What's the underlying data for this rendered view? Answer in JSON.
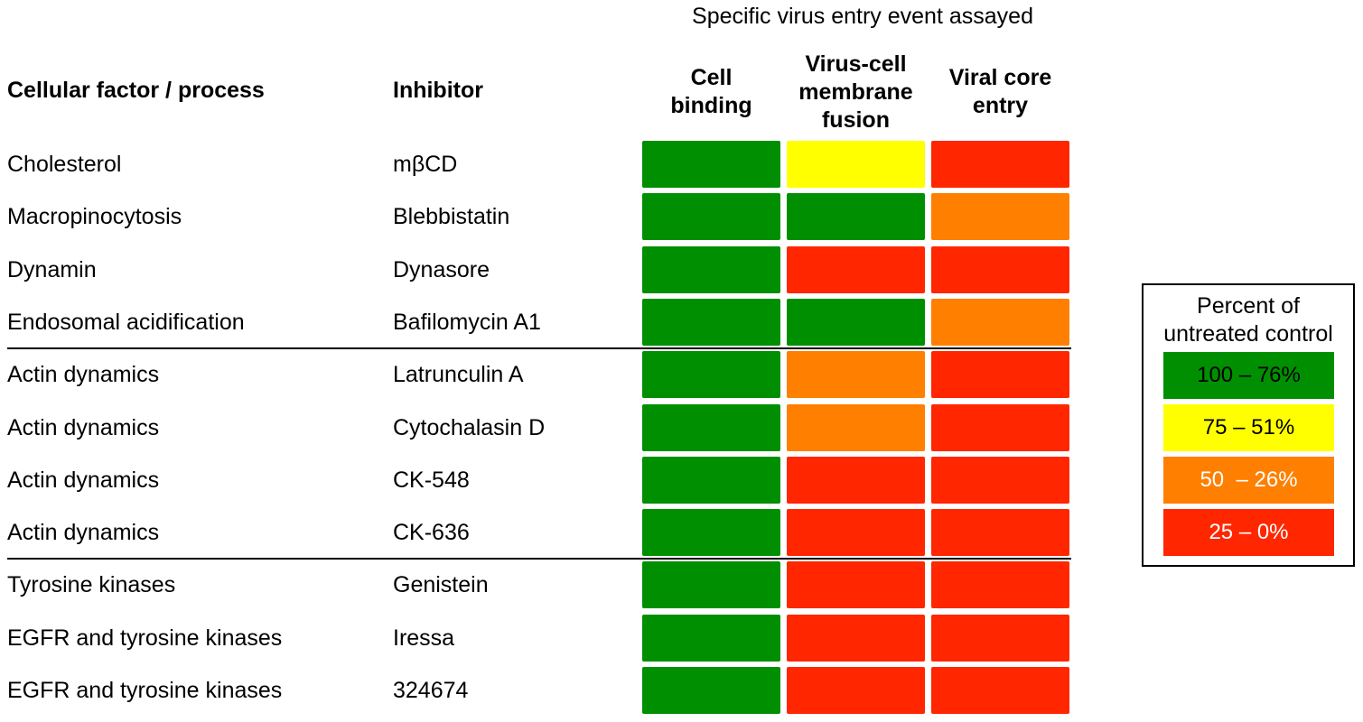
{
  "chart_data": {
    "type": "heatmap",
    "title": "",
    "column_group_label": "Specific virus entry event assayed",
    "row_header_factor": "Cellular factor / process",
    "row_header_inhibitor": "Inhibitor",
    "columns": [
      "Cell\nbinding",
      "Virus-cell\nmembrane\nfusion",
      "Viral core\nentry"
    ],
    "rows": [
      {
        "factor": "Cholesterol",
        "inhibitor": "mβCD",
        "values": [
          1,
          2,
          4
        ]
      },
      {
        "factor": "Macropinocytosis",
        "inhibitor": "Blebbistatin",
        "values": [
          1,
          1,
          3
        ]
      },
      {
        "factor": "Dynamin",
        "inhibitor": "Dynasore",
        "values": [
          1,
          4,
          4
        ]
      },
      {
        "factor": "Endosomal acidification",
        "inhibitor": "Bafilomycin A1",
        "values": [
          1,
          1,
          3
        ]
      },
      {
        "factor": "Actin dynamics",
        "inhibitor": "Latrunculin A",
        "values": [
          1,
          3,
          4
        ]
      },
      {
        "factor": "Actin dynamics",
        "inhibitor": "Cytochalasin D",
        "values": [
          1,
          3,
          4
        ]
      },
      {
        "factor": "Actin dynamics",
        "inhibitor": "CK-548",
        "values": [
          1,
          4,
          4
        ]
      },
      {
        "factor": "Actin dynamics",
        "inhibitor": "CK-636",
        "values": [
          1,
          4,
          4
        ]
      },
      {
        "factor": "Tyrosine kinases",
        "inhibitor": "Genistein",
        "values": [
          1,
          4,
          4
        ]
      },
      {
        "factor": "EGFR and tyrosine kinases",
        "inhibitor": "Iressa",
        "values": [
          1,
          4,
          4
        ]
      },
      {
        "factor": "EGFR and tyrosine kinases",
        "inhibitor": "324674",
        "values": [
          1,
          4,
          4
        ]
      }
    ],
    "group_separators_after_rows": [
      3,
      7
    ],
    "legend": {
      "title": "Percent of\nuntreated control",
      "position": "right",
      "categories": [
        {
          "level": 1,
          "label": "100 – 76%",
          "color": "#008f00",
          "text_color": "#000000"
        },
        {
          "level": 2,
          "label": "75 – 51%",
          "color": "#ffff00",
          "text_color": "#000000"
        },
        {
          "level": 3,
          "label": "50  – 26%",
          "color": "#ff7f00",
          "text_color": "#ffffff"
        },
        {
          "level": 4,
          "label": "25 – 0%",
          "color": "#ff2600",
          "text_color": "#ffffff"
        }
      ]
    }
  }
}
